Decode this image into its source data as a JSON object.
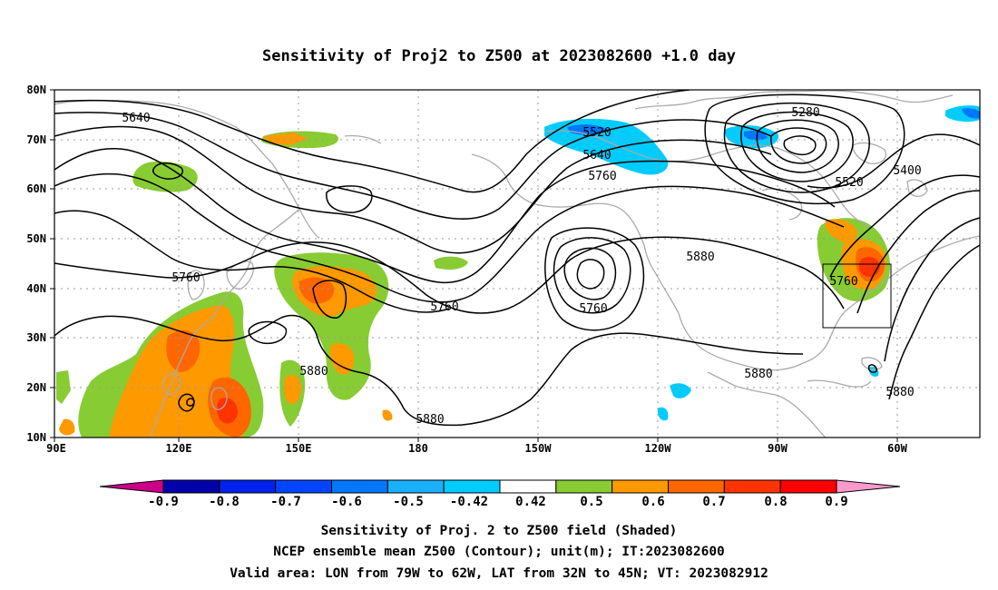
{
  "title": "Sensitivity of Proj2 to Z500 at 2023082600 +1.0 day",
  "lon_labels": [
    "90E",
    "120E",
    "150E",
    "180",
    "150W",
    "120W",
    "90W",
    "60W"
  ],
  "lat_labels": [
    "80N",
    "70N",
    "60N",
    "50N",
    "40N",
    "30N",
    "20N",
    "10N"
  ],
  "contour_labels": [
    "5640",
    "5520",
    "5640",
    "5760",
    "5280",
    "5400",
    "5520",
    "5760",
    "5760",
    "5760",
    "5880",
    "5760",
    "5880",
    "5880",
    "5880",
    "5880"
  ],
  "colorbar": {
    "colors": [
      "#cc0088",
      "#0000aa",
      "#0022ee",
      "#0044ff",
      "#0077ff",
      "#1ab0ff",
      "#00ccff",
      "#ffffff",
      "#88cc33",
      "#ff9900",
      "#ff6600",
      "#ff3300",
      "#ff0000",
      "#ff99cc"
    ],
    "labels": [
      "-0.9",
      "-0.8",
      "-0.7",
      "-0.6",
      "-0.5",
      "-0.42",
      "0.42",
      "0.5",
      "0.6",
      "0.7",
      "0.8",
      "0.9"
    ]
  },
  "footer": {
    "line1": "Sensitivity of Proj. 2 to Z500 field (Shaded)",
    "line2": "NCEP ensemble mean Z500 (Contour); unit(m); IT:2023082600",
    "line3": "Valid area: LON from 79W to 62W, LAT from 32N to 45N; VT: 2023082912"
  }
}
